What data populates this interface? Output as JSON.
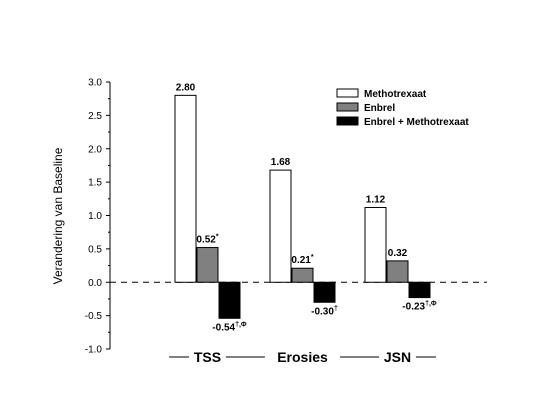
{
  "chart_data": {
    "type": "bar",
    "ylabel": "Verandering van Baseline",
    "ylim": [
      -1.0,
      3.0
    ],
    "y_ticks": [
      "-1.0",
      "-0.5",
      "0.0",
      "0.5",
      "1.0",
      "1.5",
      "2.0",
      "2.5",
      "3.0"
    ],
    "y_tick_values": [
      -1.0,
      -0.5,
      0.0,
      0.5,
      1.0,
      1.5,
      2.0,
      2.5,
      3.0
    ],
    "zero_line": "dashed",
    "grid": false,
    "legend_position": "top-right",
    "categories": [
      "TSS",
      "Erosies",
      "JSN"
    ],
    "series": [
      {
        "name": "Methotrexaat",
        "color": "#ffffff",
        "values": [
          2.8,
          1.68,
          1.12
        ],
        "labels": [
          {
            "value": "2.80",
            "mark": ""
          },
          {
            "value": "1.68",
            "mark": ""
          },
          {
            "value": "1.12",
            "mark": ""
          }
        ]
      },
      {
        "name": "Enbrel",
        "color": "#808080",
        "values": [
          0.52,
          0.21,
          0.32
        ],
        "labels": [
          {
            "value": "0.52",
            "mark": "*"
          },
          {
            "value": "0.21",
            "mark": "*"
          },
          {
            "value": "0.32",
            "mark": ""
          }
        ]
      },
      {
        "name": "Enbrel + Methotrexaat",
        "color": "#000000",
        "values": [
          -0.54,
          -0.3,
          -0.23
        ],
        "labels": [
          {
            "value": "-0.54",
            "mark": "†,Φ"
          },
          {
            "value": "-0.30",
            "mark": "†"
          },
          {
            "value": "-0.23",
            "mark": "†,Φ"
          }
        ]
      }
    ]
  }
}
